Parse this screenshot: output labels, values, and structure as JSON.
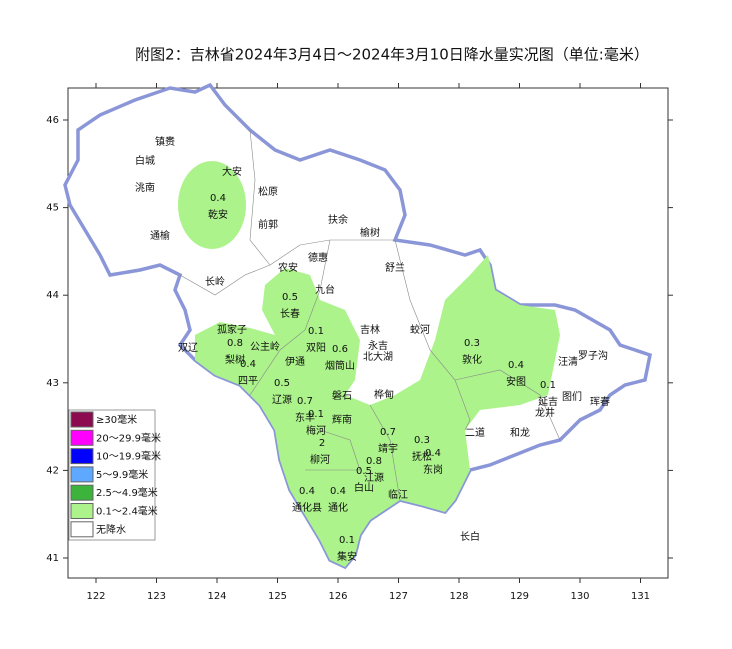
{
  "title": "附图2：吉林省2024年3月4日～2024年3月10日降水量实况图（单位:毫米）",
  "axes": {
    "lon_ticks": [
      122,
      123,
      124,
      125,
      126,
      127,
      128,
      129,
      130,
      131
    ],
    "lat_ticks": [
      46,
      45,
      44,
      43,
      42,
      41
    ]
  },
  "legend": [
    {
      "label": "≥30毫米",
      "color": "#8b0a50"
    },
    {
      "label": "20～29.9毫米",
      "color": "#ff00ff"
    },
    {
      "label": "10～19.9毫米",
      "color": "#0000ff"
    },
    {
      "label": "5～9.9毫米",
      "color": "#5fa8ff"
    },
    {
      "label": "2.5～4.9毫米",
      "color": "#3cb43c"
    },
    {
      "label": "0.1～2.4毫米",
      "color": "#acf38b"
    },
    {
      "label": "无降水",
      "color": "#ffffff"
    }
  ],
  "stations": [
    {
      "name": "乾安",
      "value": 0.4
    },
    {
      "name": "长春",
      "value": 0.5
    },
    {
      "name": "双阳",
      "value": 0.1
    },
    {
      "name": "烟筒山",
      "value": 0.6
    },
    {
      "name": "梨树",
      "value": 0.8
    },
    {
      "name": "四平",
      "value": 0.4
    },
    {
      "name": "辽源",
      "value": 0.5
    },
    {
      "name": "东丰",
      "value": 0.7
    },
    {
      "name": "梅河",
      "value": 0.1
    },
    {
      "name": "靖宇",
      "value": 0.7
    },
    {
      "name": "抚松",
      "value": 0.3
    },
    {
      "name": "东岗",
      "value": 0.4
    },
    {
      "name": "江源",
      "value": 0.8
    },
    {
      "name": "白山",
      "value": 0.5
    },
    {
      "name": "通化县",
      "value": 0.4
    },
    {
      "name": "通化",
      "value": 0.4
    },
    {
      "name": "集安",
      "value": 0.1
    },
    {
      "name": "敦化",
      "value": 0.3
    },
    {
      "name": "安图",
      "value": 0.4
    },
    {
      "name": "延吉",
      "value": 0.1
    }
  ],
  "places": [
    "镇赉",
    "白城",
    "洮南",
    "通榆",
    "大安",
    "松原",
    "前郭",
    "扶余",
    "榆树",
    "德惠",
    "农安",
    "长岭",
    "舒兰",
    "九台",
    "吉林",
    "蛟河",
    "永吉",
    "北大湖",
    "伊通",
    "公主岭",
    "孤家子",
    "双辽",
    "磐石",
    "辉南",
    "桦甸",
    "2",
    "柳河",
    "临江",
    "龙井",
    "图们",
    "汪清",
    "罗子沟",
    "珲春",
    "二道",
    "和龙",
    "长白"
  ]
}
